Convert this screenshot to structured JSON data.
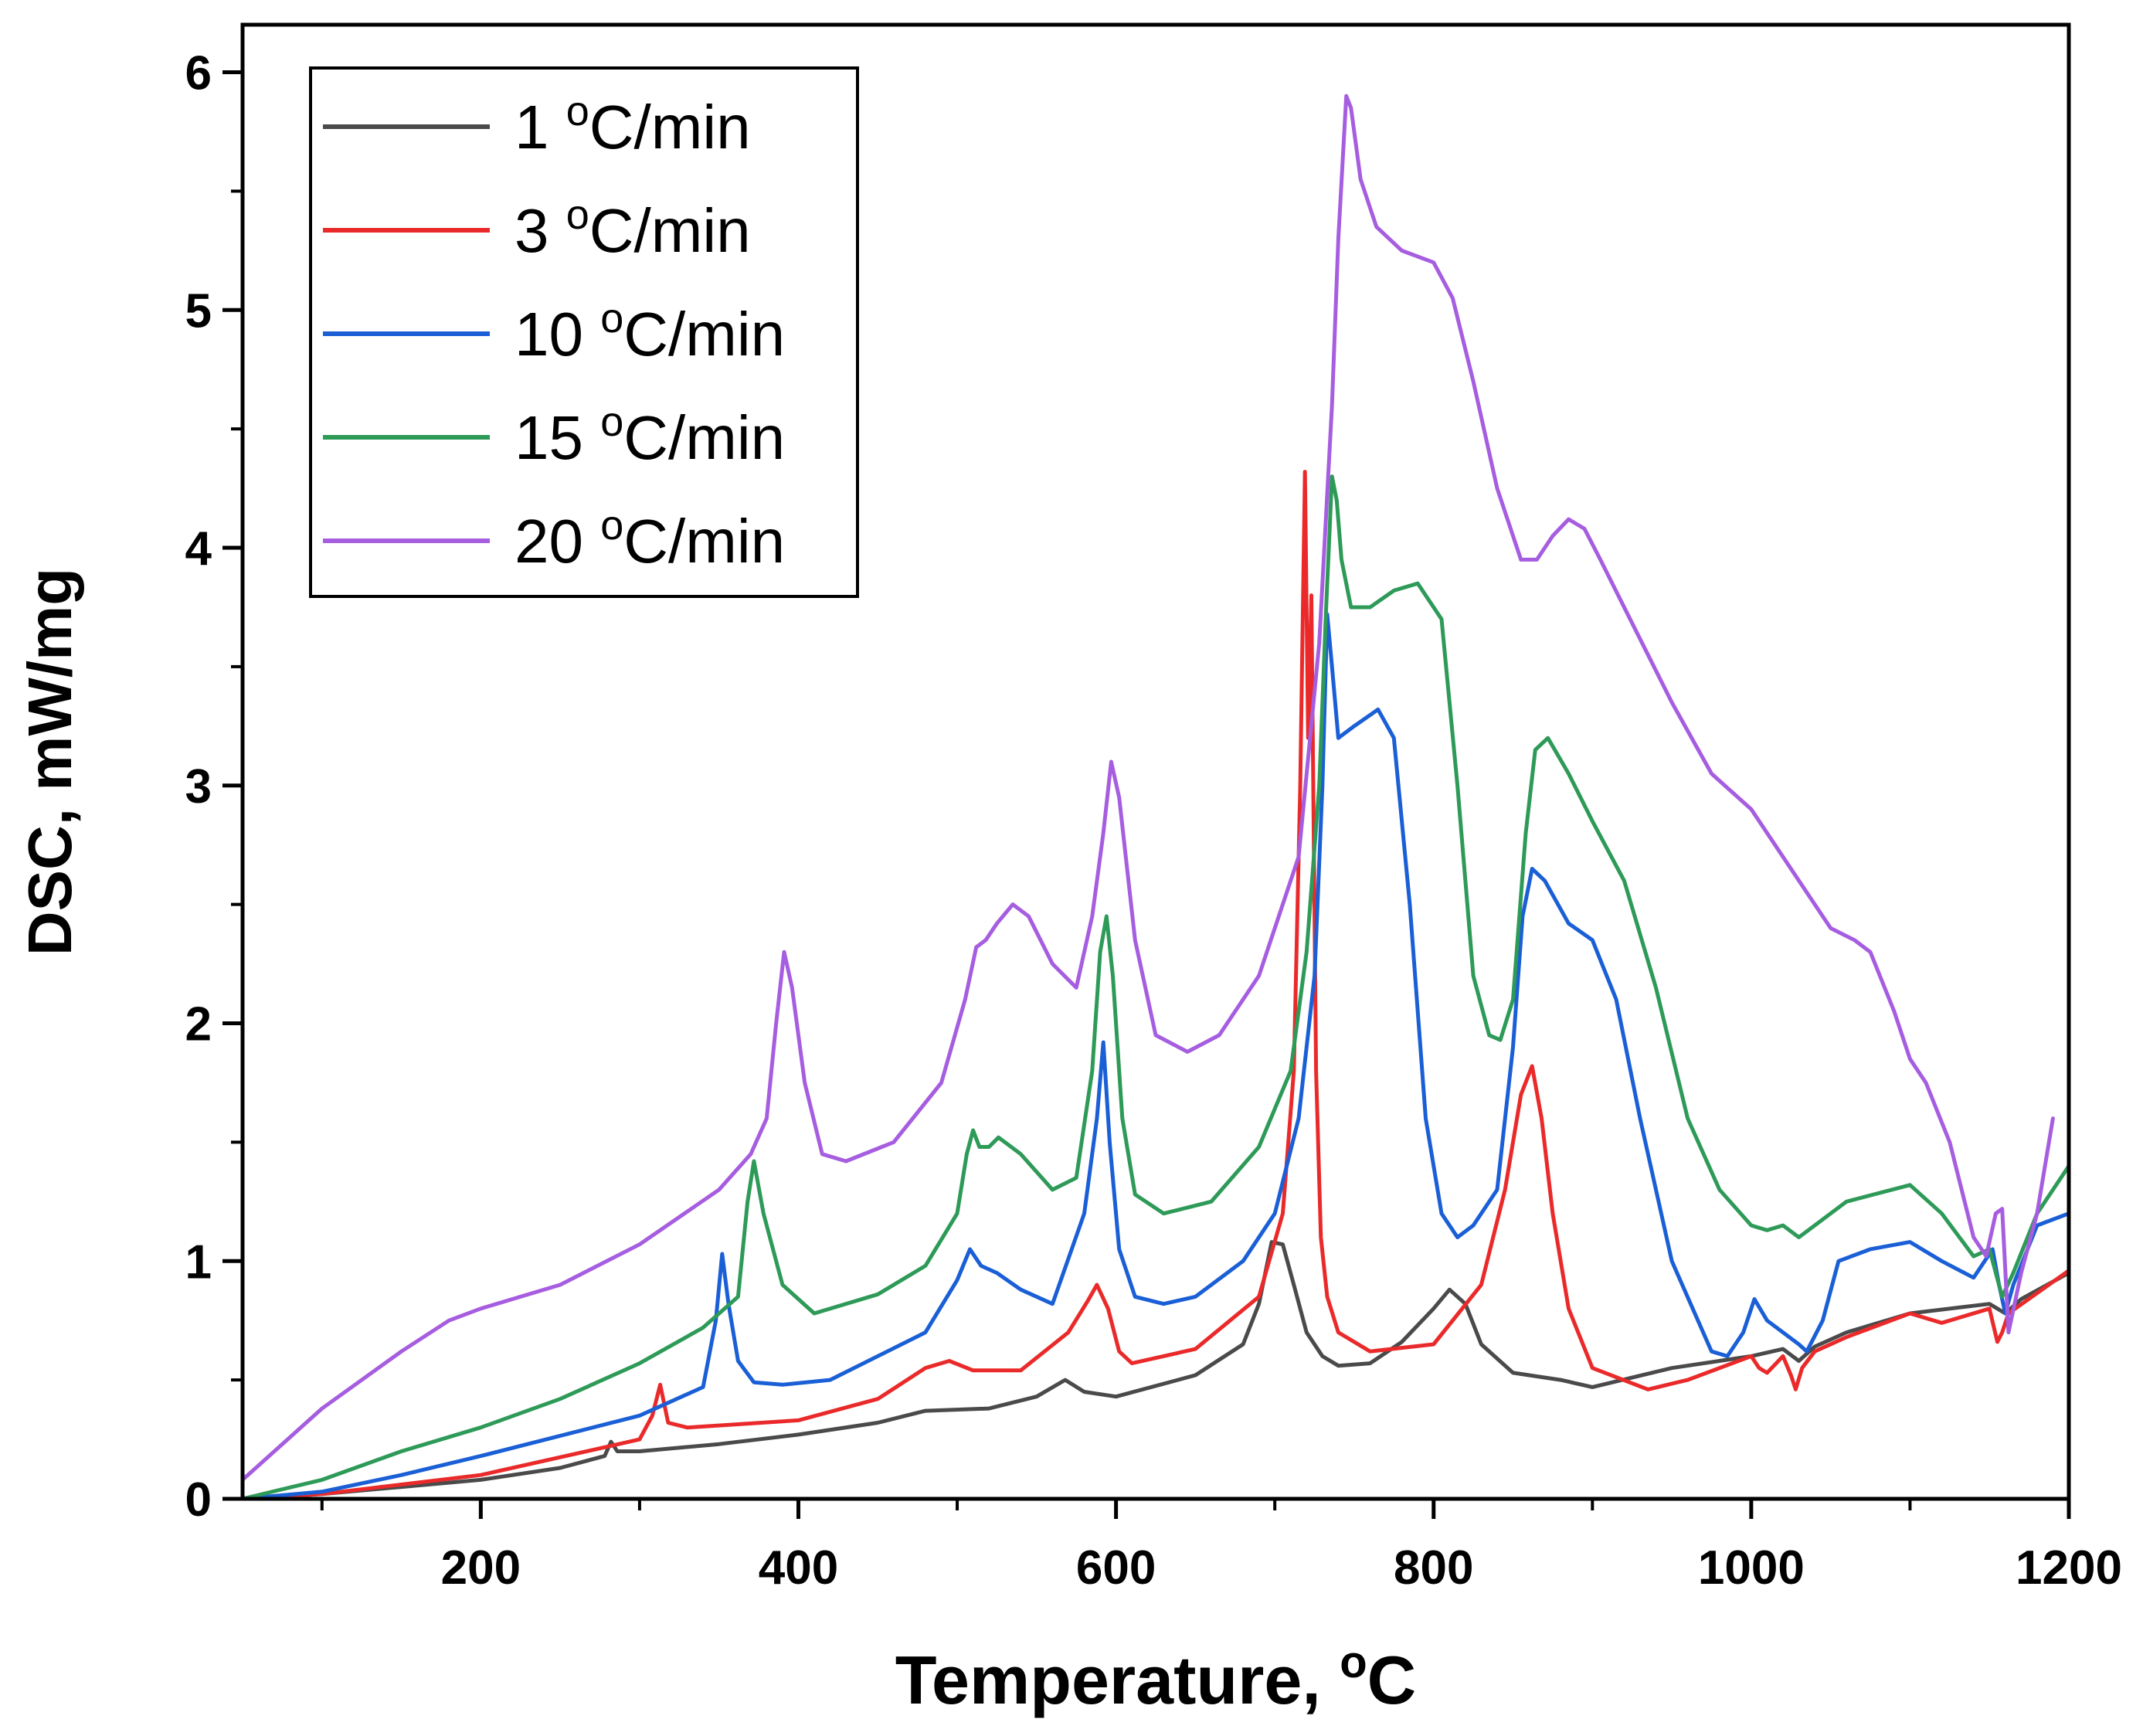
{
  "chart_data": {
    "type": "line",
    "xlabel": "Temperature, ",
    "xlabel_unit": "C",
    "ylabel": "DSC, mW/mg",
    "degree_mark": "o",
    "xlim": [
      50,
      1200
    ],
    "ylim": [
      0,
      6.2
    ],
    "x_ticks": [
      200,
      400,
      600,
      800,
      1000,
      1200
    ],
    "x_tick_labels": [
      "200",
      "400",
      "600",
      "800",
      "1000",
      "1200"
    ],
    "y_ticks": [
      0,
      1,
      2,
      3,
      4,
      5,
      6
    ],
    "y_tick_labels": [
      "0",
      "1",
      "2",
      "3",
      "4",
      "5",
      "6"
    ],
    "legend_position": "top-left",
    "grid": false,
    "series": [
      {
        "name": "1 oC/min",
        "rate": "1 ",
        "unit": "C/min",
        "color": "#4a4a4a",
        "x": [
          50,
          100,
          150,
          200,
          250,
          278,
          282,
          286,
          300,
          350,
          400,
          450,
          480,
          520,
          550,
          568,
          580,
          600,
          650,
          680,
          690,
          698,
          705,
          712,
          720,
          730,
          740,
          760,
          780,
          800,
          810,
          820,
          830,
          850,
          880,
          900,
          950,
          1000,
          1020,
          1030,
          1040,
          1060,
          1100,
          1150,
          1160,
          1170,
          1200
        ],
        "y": [
          0.0,
          0.02,
          0.05,
          0.08,
          0.13,
          0.18,
          0.24,
          0.2,
          0.2,
          0.23,
          0.27,
          0.32,
          0.37,
          0.38,
          0.43,
          0.5,
          0.45,
          0.43,
          0.52,
          0.65,
          0.82,
          1.08,
          1.07,
          0.9,
          0.7,
          0.6,
          0.56,
          0.57,
          0.66,
          0.8,
          0.88,
          0.82,
          0.65,
          0.53,
          0.5,
          0.47,
          0.55,
          0.6,
          0.63,
          0.58,
          0.64,
          0.7,
          0.78,
          0.82,
          0.78,
          0.84,
          0.95
        ]
      },
      {
        "name": "3 oC/min",
        "rate": "3 ",
        "unit": "C/min",
        "color": "#ea2a2a",
        "x": [
          50,
          100,
          200,
          300,
          308,
          313,
          318,
          330,
          400,
          450,
          480,
          495,
          510,
          540,
          570,
          582,
          588,
          595,
          602,
          610,
          650,
          690,
          705,
          712,
          716,
          719,
          721,
          723,
          726,
          729,
          733,
          740,
          760,
          800,
          830,
          845,
          855,
          862,
          868,
          875,
          885,
          900,
          935,
          960,
          1000,
          1005,
          1010,
          1020,
          1025,
          1028,
          1032,
          1040,
          1060,
          1100,
          1120,
          1150,
          1155,
          1158,
          1162,
          1200
        ],
        "y": [
          0.0,
          0.02,
          0.1,
          0.25,
          0.35,
          0.48,
          0.32,
          0.3,
          0.33,
          0.42,
          0.55,
          0.58,
          0.54,
          0.54,
          0.7,
          0.83,
          0.9,
          0.8,
          0.62,
          0.57,
          0.63,
          0.85,
          1.2,
          1.8,
          3.0,
          4.32,
          3.2,
          3.8,
          1.8,
          1.1,
          0.85,
          0.7,
          0.62,
          0.65,
          0.9,
          1.3,
          1.7,
          1.82,
          1.6,
          1.2,
          0.8,
          0.55,
          0.46,
          0.5,
          0.6,
          0.55,
          0.53,
          0.6,
          0.52,
          0.46,
          0.55,
          0.62,
          0.68,
          0.78,
          0.74,
          0.8,
          0.66,
          0.7,
          0.78,
          0.96
        ]
      },
      {
        "name": "10 oC/min",
        "rate": "10 ",
        "unit": "C/min",
        "color": "#1a5fd6",
        "x": [
          50,
          100,
          150,
          200,
          300,
          340,
          348,
          352,
          356,
          362,
          372,
          390,
          420,
          480,
          500,
          508,
          515,
          525,
          540,
          560,
          580,
          588,
          592,
          596,
          602,
          612,
          630,
          650,
          680,
          700,
          715,
          725,
          730,
          733,
          736,
          740,
          750,
          765,
          775,
          785,
          795,
          805,
          815,
          825,
          840,
          850,
          856,
          862,
          870,
          885,
          900,
          915,
          930,
          950,
          975,
          985,
          995,
          1002,
          1010,
          1020,
          1030,
          1035,
          1045,
          1055,
          1075,
          1100,
          1120,
          1140,
          1152,
          1156,
          1160,
          1165,
          1180,
          1200
        ],
        "y": [
          0.0,
          0.03,
          0.1,
          0.18,
          0.35,
          0.47,
          0.75,
          1.03,
          0.82,
          0.58,
          0.49,
          0.48,
          0.5,
          0.7,
          0.92,
          1.05,
          0.98,
          0.95,
          0.88,
          0.82,
          1.2,
          1.6,
          1.92,
          1.5,
          1.05,
          0.85,
          0.82,
          0.85,
          1.0,
          1.2,
          1.6,
          2.2,
          3.0,
          3.72,
          3.5,
          3.2,
          3.25,
          3.32,
          3.2,
          2.5,
          1.6,
          1.2,
          1.1,
          1.15,
          1.3,
          1.9,
          2.45,
          2.65,
          2.6,
          2.42,
          2.35,
          2.1,
          1.6,
          1.0,
          0.62,
          0.6,
          0.7,
          0.84,
          0.75,
          0.7,
          0.65,
          0.62,
          0.75,
          1.0,
          1.05,
          1.08,
          1.0,
          0.93,
          1.05,
          0.9,
          0.78,
          0.9,
          1.15,
          1.2
        ]
      },
      {
        "name": "15 oC/min",
        "rate": "15 ",
        "unit": "C/min",
        "color": "#2e9a58",
        "x": [
          50,
          100,
          150,
          200,
          250,
          300,
          340,
          362,
          368,
          372,
          378,
          390,
          410,
          450,
          480,
          500,
          506,
          510,
          514,
          520,
          526,
          540,
          560,
          575,
          585,
          590,
          594,
          598,
          604,
          612,
          630,
          660,
          690,
          710,
          720,
          728,
          732,
          736,
          739,
          742,
          748,
          760,
          775,
          790,
          805,
          815,
          825,
          835,
          842,
          850,
          858,
          864,
          872,
          885,
          900,
          920,
          940,
          960,
          980,
          1000,
          1010,
          1020,
          1030,
          1040,
          1060,
          1100,
          1120,
          1140,
          1150,
          1158,
          1165,
          1180,
          1200
        ],
        "y": [
          0.0,
          0.08,
          0.2,
          0.3,
          0.42,
          0.57,
          0.72,
          0.85,
          1.25,
          1.42,
          1.2,
          0.9,
          0.78,
          0.86,
          0.98,
          1.2,
          1.45,
          1.55,
          1.48,
          1.48,
          1.52,
          1.45,
          1.3,
          1.35,
          1.8,
          2.3,
          2.45,
          2.2,
          1.6,
          1.28,
          1.2,
          1.25,
          1.48,
          1.8,
          2.3,
          3.0,
          3.7,
          4.3,
          4.2,
          3.95,
          3.75,
          3.75,
          3.82,
          3.85,
          3.7,
          3.0,
          2.2,
          1.95,
          1.93,
          2.1,
          2.8,
          3.15,
          3.2,
          3.05,
          2.85,
          2.6,
          2.15,
          1.6,
          1.3,
          1.15,
          1.13,
          1.15,
          1.1,
          1.15,
          1.25,
          1.32,
          1.2,
          1.02,
          1.05,
          0.85,
          0.95,
          1.2,
          1.4
        ]
      },
      {
        "name": "20 oC/min",
        "rate": "20 ",
        "unit": "C/min",
        "color": "#a65de0",
        "x": [
          50,
          100,
          150,
          180,
          200,
          250,
          300,
          350,
          370,
          380,
          386,
          391,
          396,
          404,
          415,
          430,
          460,
          490,
          505,
          512,
          518,
          525,
          535,
          545,
          560,
          575,
          585,
          592,
          597,
          602,
          612,
          625,
          645,
          665,
          690,
          715,
          728,
          736,
          740,
          745,
          748,
          754,
          764,
          780,
          800,
          812,
          825,
          840,
          855,
          865,
          875,
          885,
          895,
          905,
          920,
          950,
          975,
          1000,
          1025,
          1050,
          1065,
          1075,
          1090,
          1100,
          1110,
          1125,
          1140,
          1148,
          1154,
          1158,
          1162,
          1170,
          1180,
          1190
        ],
        "y": [
          0.08,
          0.38,
          0.62,
          0.75,
          0.8,
          0.9,
          1.07,
          1.3,
          1.45,
          1.6,
          2.0,
          2.3,
          2.15,
          1.75,
          1.45,
          1.42,
          1.5,
          1.75,
          2.1,
          2.32,
          2.35,
          2.42,
          2.5,
          2.45,
          2.25,
          2.15,
          2.45,
          2.8,
          3.1,
          2.95,
          2.35,
          1.95,
          1.88,
          1.95,
          2.2,
          2.7,
          3.6,
          4.6,
          5.3,
          5.9,
          5.85,
          5.55,
          5.35,
          5.25,
          5.2,
          5.05,
          4.7,
          4.25,
          3.95,
          3.95,
          4.05,
          4.12,
          4.08,
          3.95,
          3.75,
          3.35,
          3.05,
          2.9,
          2.65,
          2.4,
          2.35,
          2.3,
          2.05,
          1.85,
          1.75,
          1.5,
          1.1,
          1.02,
          1.2,
          1.22,
          0.7,
          0.95,
          1.2,
          1.6
        ]
      }
    ]
  }
}
